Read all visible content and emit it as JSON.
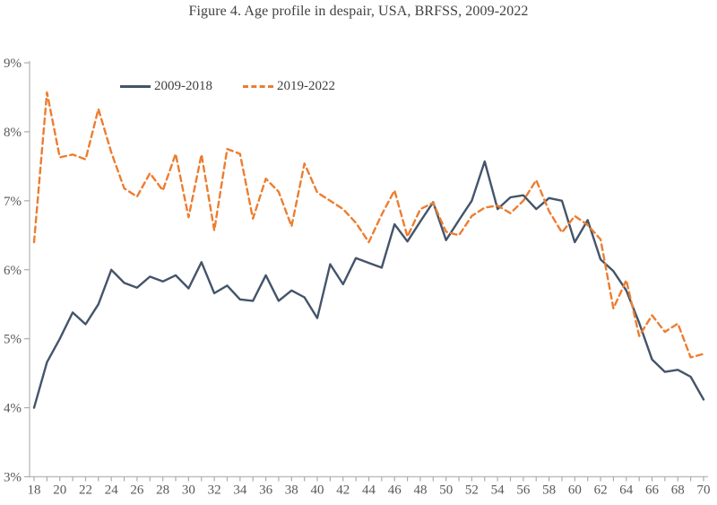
{
  "title": "Figure 4. Age profile in despair, USA, BRFSS, 2009-2022",
  "legend": {
    "item1": "2009-2018",
    "item2": "2019-2022"
  },
  "chart_data": {
    "type": "line",
    "title": "Figure 4. Age profile in despair, USA, BRFSS, 2009-2022",
    "xlabel": "",
    "ylabel": "",
    "xlim": [
      18,
      70
    ],
    "ylim": [
      3,
      9
    ],
    "grid": false,
    "legend_position": "top-left-inside",
    "x": [
      18,
      19,
      20,
      21,
      22,
      23,
      24,
      25,
      26,
      27,
      28,
      29,
      30,
      31,
      32,
      33,
      34,
      35,
      36,
      37,
      38,
      39,
      40,
      41,
      42,
      43,
      44,
      45,
      46,
      47,
      48,
      49,
      50,
      51,
      52,
      53,
      54,
      55,
      56,
      57,
      58,
      59,
      60,
      61,
      62,
      63,
      64,
      65,
      66,
      67,
      68,
      69,
      70
    ],
    "x_tick_labels": [
      "18",
      "20",
      "22",
      "24",
      "26",
      "28",
      "30",
      "32",
      "34",
      "36",
      "38",
      "40",
      "42",
      "44",
      "46",
      "48",
      "50",
      "52",
      "54",
      "56",
      "58",
      "60",
      "62",
      "64",
      "66",
      "68",
      "70"
    ],
    "y_tick_labels": [
      "3%",
      "4%",
      "5%",
      "6%",
      "7%",
      "8%",
      "9%"
    ],
    "y_tick_values": [
      3,
      4,
      5,
      6,
      7,
      8,
      9
    ],
    "series": [
      {
        "name": "2009-2018",
        "style": "solid",
        "color": "#44546A",
        "values": [
          4.0,
          4.66,
          5.0,
          5.38,
          5.21,
          5.5,
          6.0,
          5.81,
          5.74,
          5.9,
          5.83,
          5.92,
          5.73,
          6.11,
          5.66,
          5.77,
          5.57,
          5.55,
          5.92,
          5.55,
          5.7,
          5.6,
          5.3,
          6.08,
          5.79,
          6.17,
          6.1,
          6.03,
          6.66,
          6.41,
          6.7,
          6.98,
          6.43,
          6.72,
          7.0,
          7.57,
          6.88,
          7.05,
          7.08,
          6.88,
          7.04,
          7.0,
          6.4,
          6.72,
          6.15,
          5.98,
          5.7,
          5.23,
          4.7,
          4.52,
          4.55,
          4.45,
          4.12
        ]
      },
      {
        "name": "2019-2022",
        "style": "dashed",
        "color": "#ED7D31",
        "values": [
          6.4,
          8.57,
          7.63,
          7.67,
          7.6,
          8.33,
          7.7,
          7.18,
          7.06,
          7.4,
          7.15,
          7.68,
          6.76,
          7.67,
          6.57,
          7.75,
          7.68,
          6.74,
          7.32,
          7.13,
          6.63,
          7.54,
          7.12,
          7.0,
          6.88,
          6.68,
          6.4,
          6.8,
          7.15,
          6.48,
          6.88,
          6.97,
          6.55,
          6.5,
          6.78,
          6.9,
          6.93,
          6.82,
          7.0,
          7.3,
          6.85,
          6.54,
          6.78,
          6.65,
          6.44,
          5.44,
          5.85,
          5.04,
          5.34,
          5.1,
          5.22,
          4.73,
          4.78
        ]
      }
    ],
    "axis_color": "#BFBFBF",
    "tick_color": "#ABABAB",
    "tick_label_color": "#595959",
    "title_color": "#404040"
  }
}
